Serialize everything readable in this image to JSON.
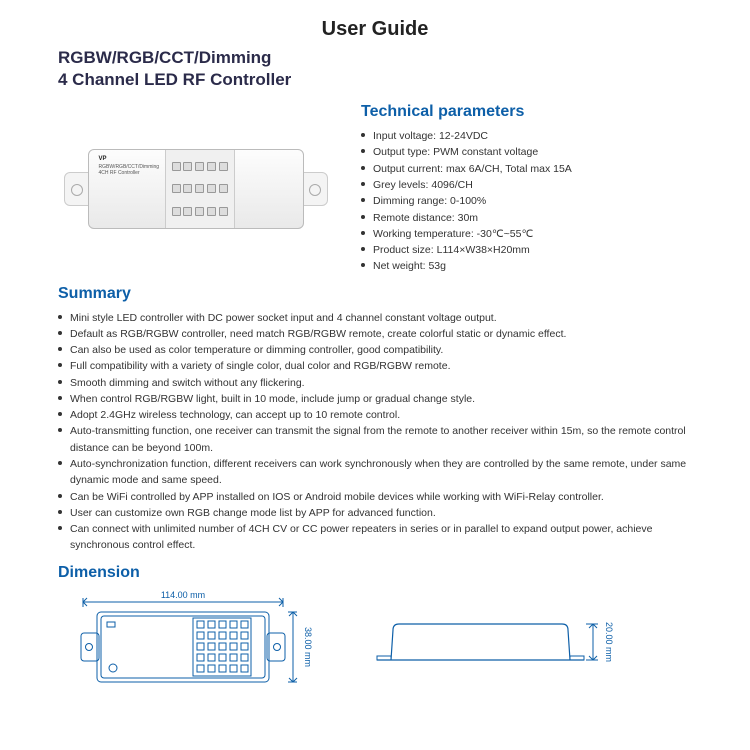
{
  "title": "User Guide",
  "subtitle_line1": "RGBW/RGB/CCT/Dimming",
  "subtitle_line2": "4 Channel LED RF Controller",
  "device_label": {
    "model": "VP",
    "name": "RGBW/RGB/CCT/Dimming",
    "sub": "4CH RF Controller"
  },
  "tech": {
    "heading": "Technical parameters",
    "items": [
      "Input voltage: 12-24VDC",
      "Output type: PWM constant voltage",
      "Output current: max 6A/CH, Total max 15A",
      "Grey levels: 4096/CH",
      "Dimming range: 0-100%",
      "Remote distance: 30m",
      "Working temperature: -30℃~55℃",
      "Product size: L114×W38×H20mm",
      "Net weight: 53g"
    ]
  },
  "summary": {
    "heading": "Summary",
    "items": [
      "Mini style LED controller with DC power socket input and 4 channel constant voltage output.",
      "Default as RGB/RGBW controller, need match RGB/RGBW remote, create colorful static or dynamic effect.",
      "Can also be used as color temperature or dimming controller, good compatibility.",
      "Full compatibility with a variety of single color, dual color and RGB/RGBW remote.",
      "Smooth dimming and switch without any flickering.",
      "When control RGB/RGBW light, built in 10 mode, include jump or gradual change style.",
      "Adopt 2.4GHz wireless technology, can accept up to 10 remote control.",
      "Auto-transmitting function, one receiver can transmit the signal from the remote to another receiver within 15m, so the remote control distance can be beyond 100m.",
      "Auto-synchronization function, different receivers can work synchronously when they are controlled by the same remote, under same dynamic mode and same speed.",
      "Can be WiFi controlled by APP installed on IOS or Android mobile devices while working with WiFi-Relay controller.",
      "User can customize own RGB change mode list by APP for advanced function.",
      "Can connect with unlimited number of 4CH CV or CC power repeaters in series or in parallel to expand output power, achieve synchronous control effect."
    ]
  },
  "dimension": {
    "heading": "Dimension",
    "width_mm": "114.00 mm",
    "depth_mm": "38.00 mm",
    "height_mm": "20.00 mm",
    "stroke": "#0d5fa8",
    "fontsize": 9
  }
}
